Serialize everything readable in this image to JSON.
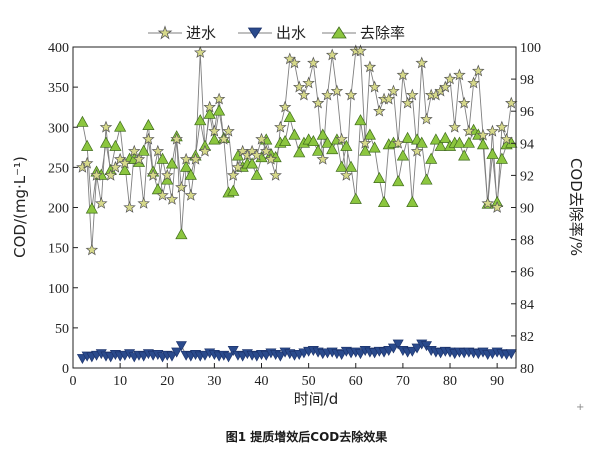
{
  "chart_data": {
    "type": "line",
    "xlabel": "时间/d",
    "ylabel_left": "COD/(mg·L⁻¹)",
    "ylabel_right": "COD去除率/%",
    "xlim": [
      0,
      94
    ],
    "ylim_left": [
      0,
      400
    ],
    "ylim_right": [
      80,
      100
    ],
    "xticks": [
      "0",
      "10",
      "20",
      "30",
      "40",
      "50",
      "60",
      "70",
      "80",
      "90"
    ],
    "yticks_left": [
      "400",
      "350",
      "300",
      "250",
      "200",
      "150",
      "100",
      "50",
      "0"
    ],
    "yticks_right": [
      "100",
      "98",
      "96",
      "94",
      "92",
      "90",
      "88",
      "86",
      "84",
      "82",
      "80"
    ],
    "legend_position": "top",
    "colors": {
      "influent": "#d6d98a",
      "effluent": "#2a4a8c",
      "removal": "#8cc63f",
      "line": "#7f7f7f"
    },
    "series": [
      {
        "name": "进水",
        "axis": "left",
        "marker": "star",
        "x": [
          2,
          3,
          4,
          5,
          6,
          7,
          8,
          9,
          10,
          11,
          12,
          13,
          14,
          15,
          16,
          17,
          18,
          19,
          20,
          21,
          22,
          23,
          24,
          25,
          26,
          27,
          28,
          29,
          30,
          31,
          32,
          33,
          34,
          35,
          36,
          37,
          38,
          39,
          40,
          41,
          42,
          43,
          44,
          45,
          46,
          47,
          48,
          49,
          50,
          51,
          52,
          53,
          54,
          55,
          56,
          57,
          58,
          59,
          60,
          61,
          62,
          63,
          64,
          65,
          66,
          67,
          68,
          69,
          70,
          71,
          72,
          73,
          74,
          75,
          76,
          77,
          78,
          79,
          80,
          81,
          82,
          83,
          84,
          85,
          86,
          87,
          88,
          89,
          90,
          91,
          92,
          93
        ],
        "values": [
          250,
          255,
          147,
          240,
          205,
          300,
          240,
          250,
          260,
          255,
          200,
          270,
          260,
          205,
          285,
          240,
          270,
          215,
          240,
          210,
          285,
          225,
          260,
          215,
          260,
          393,
          270,
          325,
          295,
          335,
          285,
          295,
          240,
          250,
          270,
          265,
          270,
          265,
          285,
          270,
          260,
          240,
          300,
          325,
          385,
          380,
          350,
          340,
          355,
          380,
          330,
          260,
          340,
          390,
          345,
          285,
          240,
          340,
          395,
          395,
          280,
          375,
          350,
          320,
          335,
          335,
          345,
          280,
          365,
          330,
          340,
          270,
          380,
          310,
          340,
          340,
          345,
          350,
          360,
          300,
          365,
          330,
          295,
          355,
          370,
          290,
          205,
          295,
          200,
          300,
          285,
          330
        ]
      },
      {
        "name": "出水",
        "axis": "left",
        "marker": "triangle-down",
        "x": [
          2,
          3,
          4,
          5,
          6,
          7,
          8,
          9,
          10,
          11,
          12,
          13,
          14,
          15,
          16,
          17,
          18,
          19,
          20,
          21,
          22,
          23,
          24,
          25,
          26,
          27,
          28,
          29,
          30,
          31,
          32,
          33,
          34,
          35,
          36,
          37,
          38,
          39,
          40,
          41,
          42,
          43,
          44,
          45,
          46,
          47,
          48,
          49,
          50,
          51,
          52,
          53,
          54,
          55,
          56,
          57,
          58,
          59,
          60,
          61,
          62,
          63,
          64,
          65,
          66,
          67,
          68,
          69,
          70,
          71,
          72,
          73,
          74,
          75,
          76,
          77,
          78,
          79,
          80,
          81,
          82,
          83,
          84,
          85,
          86,
          87,
          88,
          89,
          90,
          91,
          92,
          93
        ],
        "values": [
          12,
          15,
          14,
          16,
          18,
          15,
          14,
          17,
          15,
          16,
          18,
          14,
          16,
          15,
          18,
          16,
          17,
          14,
          16,
          15,
          20,
          28,
          16,
          15,
          17,
          15,
          16,
          19,
          17,
          15,
          16,
          14,
          22,
          16,
          15,
          18,
          16,
          15,
          17,
          16,
          19,
          17,
          15,
          20,
          18,
          16,
          17,
          19,
          21,
          22,
          20,
          18,
          19,
          20,
          18,
          17,
          21,
          19,
          20,
          18,
          22,
          20,
          19,
          21,
          20,
          22,
          25,
          30,
          22,
          20,
          21,
          25,
          30,
          28,
          22,
          20,
          19,
          21,
          20,
          18,
          20,
          19,
          20,
          19,
          18,
          20,
          17,
          18,
          20,
          18,
          17,
          18
        ]
      },
      {
        "name": "去除率",
        "axis": "right",
        "marker": "triangle-up",
        "x": [
          2,
          3,
          4,
          5,
          6,
          7,
          8,
          9,
          10,
          11,
          12,
          13,
          14,
          15,
          16,
          17,
          18,
          19,
          20,
          21,
          22,
          23,
          24,
          25,
          26,
          27,
          28,
          29,
          30,
          31,
          32,
          33,
          34,
          35,
          36,
          37,
          38,
          39,
          40,
          41,
          42,
          43,
          44,
          45,
          46,
          47,
          48,
          49,
          50,
          51,
          52,
          53,
          54,
          55,
          56,
          57,
          58,
          59,
          60,
          61,
          62,
          63,
          64,
          65,
          66,
          67,
          68,
          69,
          70,
          71,
          72,
          73,
          74,
          75,
          76,
          77,
          78,
          79,
          80,
          81,
          82,
          83,
          84,
          85,
          86,
          87,
          88,
          89,
          90,
          91,
          92,
          93
        ],
        "values": [
          95.3,
          93.8,
          89.9,
          92.2,
          92.0,
          94.0,
          92.3,
          93.8,
          95.0,
          92.3,
          93.0,
          93.0,
          92.8,
          93.5,
          95.1,
          92.2,
          91.1,
          93.0,
          91.7,
          92.7,
          94.4,
          88.3,
          92.5,
          92.0,
          93.2,
          95.4,
          93.8,
          95.8,
          94.2,
          96.0,
          94.3,
          90.9,
          91.0,
          93.2,
          92.5,
          92.7,
          92.7,
          92.0,
          93.1,
          94.2,
          93.3,
          93.1,
          94.0,
          94.1,
          95.6,
          94.5,
          93.4,
          94.0,
          94.2,
          94.1,
          93.5,
          94.5,
          94.0,
          93.6,
          94.2,
          92.5,
          93.8,
          92.5,
          90.5,
          95.4,
          93.5,
          94.5,
          93.7,
          91.8,
          90.3,
          93.9,
          94.0,
          91.6,
          93.2,
          94.3,
          90.3,
          94.2,
          94.0,
          91.7,
          93.0,
          94.2,
          93.8,
          94.3,
          93.8,
          94.0,
          94.0,
          93.2,
          94.0,
          94.8,
          94.5,
          93.9,
          90.2,
          93.3,
          90.3,
          93.0,
          93.9,
          94.0
        ]
      }
    ]
  },
  "caption": "图1 提质增效后COD去除效果",
  "corner_mark": "+"
}
